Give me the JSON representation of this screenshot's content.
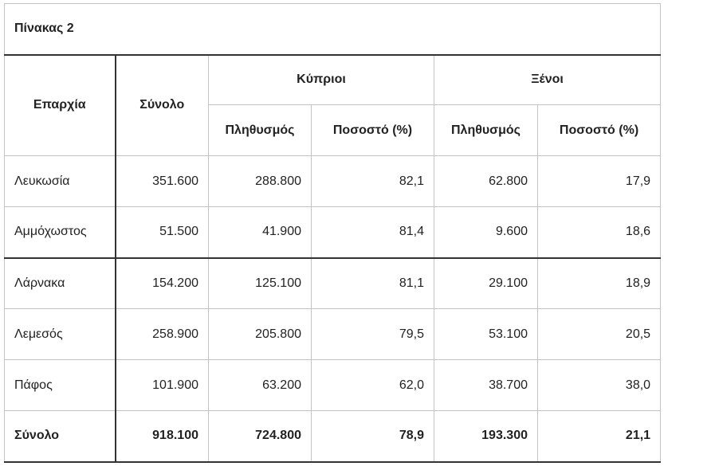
{
  "caption": "Πίνακας 2",
  "headers": {
    "district": "Επαρχία",
    "total": "Σύνολο",
    "cypriots": "Κύπριοι",
    "foreigners": "Ξένοι",
    "population": "Πληθυσμός",
    "percent": "Ποσοστό (%)"
  },
  "rows": [
    {
      "district": "Λευκωσία",
      "total": "351.600",
      "cy_pop": "288.800",
      "cy_pct": "82,1",
      "fr_pop": "62.800",
      "fr_pct": "17,9"
    },
    {
      "district": "Αμμόχωστος",
      "total": "51.500",
      "cy_pop": "41.900",
      "cy_pct": "81,4",
      "fr_pop": "9.600",
      "fr_pct": "18,6"
    },
    {
      "district": "Λάρνακα",
      "total": "154.200",
      "cy_pop": "125.100",
      "cy_pct": "81,1",
      "fr_pop": "29.100",
      "fr_pct": "18,9"
    },
    {
      "district": "Λεμεσός",
      "total": "258.900",
      "cy_pop": "205.800",
      "cy_pct": "79,5",
      "fr_pop": "53.100",
      "fr_pct": "20,5"
    },
    {
      "district": "Πάφος",
      "total": "101.900",
      "cy_pop": "63.200",
      "cy_pct": "62,0",
      "fr_pop": "38.700",
      "fr_pct": "38,0"
    }
  ],
  "total_row": {
    "district": "Σύνολο",
    "total": "918.100",
    "cy_pop": "724.800",
    "cy_pct": "78,9",
    "fr_pop": "193.300",
    "fr_pct": "21,1"
  }
}
